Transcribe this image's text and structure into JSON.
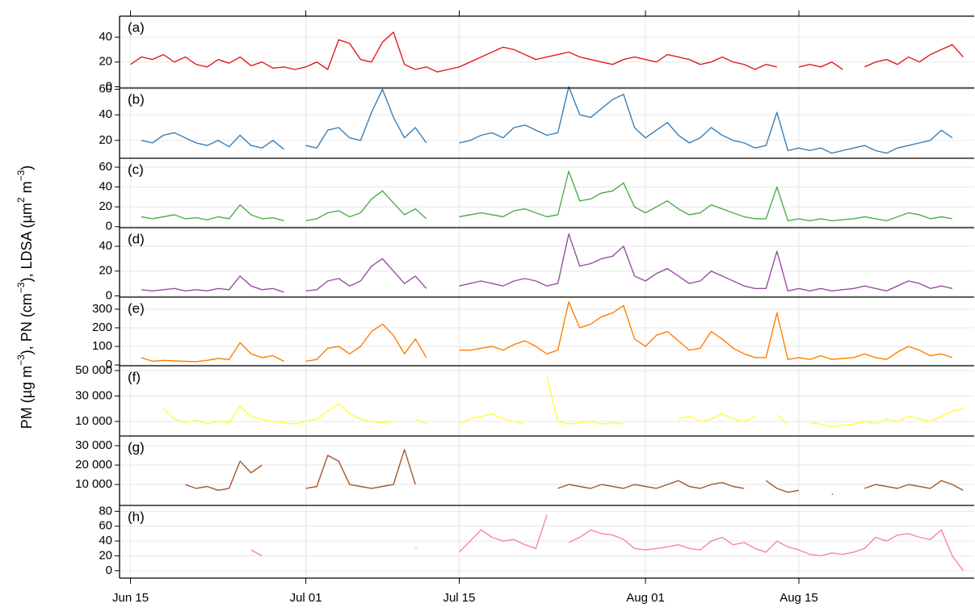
{
  "y_label": [
    "PM (µg m",
    "−3",
    "), PN (cm",
    "−3",
    "), LDSA (µm",
    "2",
    " m",
    "−3",
    ")"
  ],
  "x_axis": {
    "xlim": [
      "Jun 14",
      "Aug 31"
    ],
    "xticks": [
      "Jun 15",
      "Jul 01",
      "Jul 15",
      "Aug 01",
      "Aug 15"
    ],
    "x": [
      "Jun 15",
      "Jun 16",
      "Jun 17",
      "Jun 18",
      "Jun 19",
      "Jun 20",
      "Jun 21",
      "Jun 22",
      "Jun 23",
      "Jun 24",
      "Jun 25",
      "Jun 26",
      "Jun 27",
      "Jun 28",
      "Jun 29",
      "Jun 30",
      "Jul 01",
      "Jul 02",
      "Jul 03",
      "Jul 04",
      "Jul 05",
      "Jul 06",
      "Jul 07",
      "Jul 08",
      "Jul 09",
      "Jul 10",
      "Jul 11",
      "Jul 12",
      "Jul 13",
      "Jul 14",
      "Jul 15",
      "Jul 16",
      "Jul 17",
      "Jul 18",
      "Jul 19",
      "Jul 20",
      "Jul 21",
      "Jul 22",
      "Jul 23",
      "Jul 24",
      "Jul 25",
      "Jul 26",
      "Jul 27",
      "Jul 28",
      "Jul 29",
      "Jul 30",
      "Jul 31",
      "Aug 01",
      "Aug 02",
      "Aug 03",
      "Aug 04",
      "Aug 05",
      "Aug 06",
      "Aug 07",
      "Aug 08",
      "Aug 09",
      "Aug 10",
      "Aug 11",
      "Aug 12",
      "Aug 13",
      "Aug 14",
      "Aug 15",
      "Aug 16",
      "Aug 17",
      "Aug 18",
      "Aug 19",
      "Aug 20",
      "Aug 21",
      "Aug 22",
      "Aug 23",
      "Aug 24",
      "Aug 25",
      "Aug 26",
      "Aug 27",
      "Aug 28",
      "Aug 29",
      "Aug 30"
    ]
  },
  "chart_data": [
    {
      "type": "line",
      "label": "(a)",
      "color": "#e41a1c",
      "ylim": [
        -1,
        57
      ],
      "yticks": [
        0,
        20,
        40
      ],
      "grid": true,
      "values": [
        18,
        24,
        22,
        26,
        20,
        24,
        18,
        16,
        22,
        19,
        24,
        17,
        20,
        15,
        16,
        14,
        16,
        20,
        14,
        38,
        35,
        22,
        20,
        36,
        44,
        18,
        14,
        16,
        12,
        14,
        16,
        20,
        24,
        28,
        32,
        30,
        26,
        22,
        24,
        26,
        28,
        24,
        22,
        20,
        18,
        22,
        24,
        22,
        20,
        26,
        24,
        22,
        18,
        20,
        24,
        20,
        18,
        14,
        18,
        16,
        null,
        16,
        18,
        16,
        20,
        14,
        null,
        16,
        20,
        22,
        18,
        24,
        20,
        26,
        30,
        34,
        24
      ]
    },
    {
      "type": "line",
      "label": "(b)",
      "color": "#377eb8",
      "ylim": [
        6,
        61
      ],
      "yticks": [
        20,
        40,
        60
      ],
      "grid": true,
      "values": [
        null,
        20,
        18,
        24,
        26,
        22,
        18,
        16,
        20,
        15,
        24,
        16,
        14,
        20,
        13,
        null,
        16,
        14,
        28,
        30,
        22,
        20,
        42,
        60,
        38,
        22,
        30,
        18,
        null,
        null,
        18,
        20,
        24,
        26,
        22,
        30,
        32,
        28,
        24,
        26,
        62,
        40,
        38,
        45,
        52,
        56,
        30,
        22,
        28,
        34,
        24,
        18,
        22,
        30,
        24,
        20,
        18,
        14,
        16,
        42,
        12,
        14,
        12,
        14,
        10,
        12,
        14,
        16,
        12,
        10,
        14,
        16,
        18,
        20,
        28,
        22,
        null
      ]
    },
    {
      "type": "line",
      "label": "(c)",
      "color": "#4daf4a",
      "ylim": [
        -1,
        69
      ],
      "yticks": [
        0,
        20,
        40,
        60
      ],
      "grid": true,
      "values": [
        null,
        10,
        8,
        10,
        12,
        8,
        9,
        7,
        10,
        8,
        22,
        12,
        8,
        9,
        6,
        null,
        6,
        8,
        14,
        16,
        10,
        14,
        28,
        36,
        24,
        12,
        18,
        8,
        null,
        null,
        10,
        12,
        14,
        12,
        10,
        16,
        18,
        14,
        10,
        12,
        56,
        26,
        28,
        34,
        36,
        44,
        20,
        14,
        20,
        26,
        18,
        12,
        14,
        22,
        18,
        14,
        10,
        8,
        8,
        40,
        6,
        8,
        6,
        8,
        6,
        7,
        8,
        10,
        8,
        6,
        10,
        14,
        12,
        8,
        10,
        8,
        null
      ]
    },
    {
      "type": "line",
      "label": "(d)",
      "color": "#984ea3",
      "ylim": [
        -1,
        55
      ],
      "yticks": [
        0,
        20,
        40
      ],
      "grid": true,
      "values": [
        null,
        5,
        4,
        5,
        6,
        4,
        5,
        4,
        6,
        5,
        16,
        8,
        5,
        6,
        3,
        null,
        4,
        5,
        12,
        14,
        8,
        12,
        24,
        30,
        20,
        10,
        16,
        6,
        null,
        null,
        8,
        10,
        12,
        10,
        8,
        12,
        14,
        12,
        8,
        10,
        50,
        24,
        26,
        30,
        32,
        40,
        16,
        12,
        18,
        22,
        16,
        10,
        12,
        20,
        16,
        12,
        8,
        6,
        6,
        36,
        4,
        6,
        4,
        6,
        4,
        5,
        6,
        8,
        6,
        4,
        8,
        12,
        10,
        6,
        8,
        6,
        null
      ]
    },
    {
      "type": "line",
      "label": "(e)",
      "color": "#ff7f00",
      "ylim": [
        -4,
        365
      ],
      "yticks": [
        0,
        100,
        200,
        300
      ],
      "grid": true,
      "values": [
        null,
        40,
        20,
        25,
        22,
        20,
        18,
        25,
        35,
        30,
        120,
        60,
        40,
        50,
        20,
        null,
        20,
        30,
        90,
        100,
        60,
        100,
        180,
        220,
        160,
        60,
        140,
        40,
        null,
        null,
        80,
        80,
        90,
        100,
        80,
        110,
        130,
        100,
        60,
        80,
        340,
        200,
        220,
        260,
        280,
        320,
        140,
        100,
        160,
        180,
        130,
        80,
        90,
        180,
        140,
        90,
        60,
        40,
        40,
        280,
        30,
        40,
        30,
        50,
        30,
        35,
        40,
        60,
        40,
        30,
        70,
        100,
        80,
        50,
        60,
        40,
        null
      ]
    },
    {
      "type": "line",
      "label": "(f)",
      "color": "#ffff33",
      "ylim": [
        -1400,
        53800
      ],
      "yticks": [
        {
          "value": 10000,
          "label": "10 000"
        },
        {
          "value": 30000,
          "label": "30 000"
        },
        {
          "value": 50000,
          "label": "50 000"
        }
      ],
      "grid": true,
      "values": [
        null,
        null,
        null,
        20000,
        12000,
        9000,
        11000,
        8000,
        10000,
        9000,
        22000,
        14000,
        12000,
        10000,
        9000,
        8000,
        10000,
        12000,
        18000,
        24000,
        16000,
        12000,
        10000,
        9000,
        10000,
        null,
        12000,
        8000,
        null,
        null,
        8000,
        12000,
        14000,
        16000,
        12000,
        10000,
        8000,
        null,
        45000,
        10000,
        8000,
        9000,
        10000,
        8000,
        9000,
        8000,
        null,
        null,
        null,
        null,
        12000,
        14000,
        10000,
        12000,
        16000,
        12000,
        10000,
        14000,
        null,
        15000,
        8000,
        null,
        9000,
        8000,
        6000,
        7000,
        8000,
        10000,
        8000,
        12000,
        10000,
        14000,
        12000,
        10000,
        14000,
        18000,
        20000
      ]
    },
    {
      "type": "line",
      "label": "(g)",
      "color": "#a65628",
      "ylim": [
        -800,
        35000
      ],
      "yticks": [
        {
          "value": 10000,
          "label": "10 000"
        },
        {
          "value": 20000,
          "label": "20 000"
        },
        {
          "value": 30000,
          "label": "30 000"
        }
      ],
      "grid": true,
      "values": [
        null,
        null,
        null,
        null,
        null,
        10000,
        8000,
        9000,
        7000,
        8000,
        22000,
        16000,
        20000,
        null,
        null,
        null,
        8000,
        9000,
        25000,
        22000,
        10000,
        9000,
        8000,
        9000,
        10000,
        28000,
        10000,
        null,
        null,
        null,
        null,
        null,
        null,
        null,
        null,
        null,
        null,
        null,
        null,
        8000,
        10000,
        9000,
        8000,
        10000,
        9000,
        8000,
        10000,
        9000,
        8000,
        10000,
        12000,
        9000,
        8000,
        10000,
        11000,
        9000,
        8000,
        null,
        12000,
        8000,
        6000,
        7000,
        null,
        null,
        5000,
        null,
        null,
        8000,
        10000,
        9000,
        8000,
        10000,
        9000,
        8000,
        12000,
        10000,
        7000
      ]
    },
    {
      "type": "line",
      "label": "(h)",
      "color": "#f781bf",
      "ylim": [
        -10,
        88
      ],
      "yticks": [
        0,
        20,
        40,
        60,
        80
      ],
      "grid": true,
      "values": [
        null,
        null,
        null,
        null,
        null,
        null,
        null,
        null,
        null,
        null,
        null,
        28,
        20,
        null,
        null,
        null,
        null,
        null,
        null,
        null,
        null,
        null,
        null,
        null,
        null,
        null,
        30,
        null,
        null,
        null,
        25,
        40,
        55,
        45,
        40,
        42,
        35,
        30,
        75,
        null,
        38,
        45,
        55,
        50,
        48,
        42,
        30,
        28,
        30,
        32,
        35,
        30,
        28,
        40,
        45,
        35,
        38,
        30,
        25,
        40,
        32,
        28,
        22,
        20,
        24,
        22,
        25,
        30,
        45,
        40,
        48,
        50,
        45,
        42,
        55,
        20,
        0
      ]
    }
  ]
}
